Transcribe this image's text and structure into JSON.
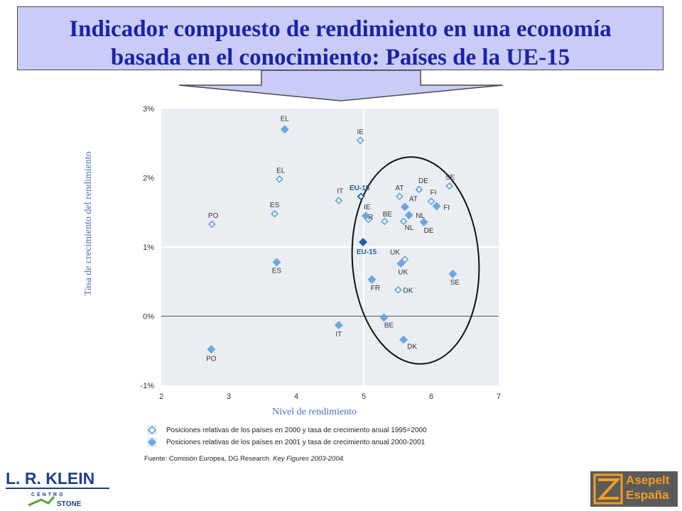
{
  "title": {
    "line1": "Indicador compuesto de rendimiento en una economía",
    "line2": "basada en el conocimiento: Países de la UE-15"
  },
  "chart_data": {
    "type": "scatter",
    "xlabel": "Nivel de rendimiento",
    "ylabel": "Tasa de crecimiento del rendimiento",
    "xlim": [
      2,
      7
    ],
    "ylim": [
      -1,
      3
    ],
    "x_ticks": [
      "2",
      "3",
      "4",
      "5",
      "6",
      "7"
    ],
    "y_ticks": [
      "3%",
      "2%",
      "1%",
      "0%",
      "-1%"
    ],
    "grid": true,
    "series": [
      {
        "name": "Posiciones relativas de los países en 2000 y tasa de crecimiento anual 1995=2000",
        "marker": "hollow-diamond",
        "color": "#6ea6e0",
        "points": [
          {
            "label": "EL",
            "x": 3.75,
            "y": 1.98
          },
          {
            "label": "IE",
            "x": 4.95,
            "y": 2.54
          },
          {
            "label": "PO",
            "x": 2.75,
            "y": 1.33
          },
          {
            "label": "ES",
            "x": 3.68,
            "y": 1.48
          },
          {
            "label": "IT",
            "x": 4.63,
            "y": 1.67
          },
          {
            "label": "EU-15",
            "x": 4.96,
            "y": 1.73
          },
          {
            "label": "AT",
            "x": 5.53,
            "y": 1.73
          },
          {
            "label": "DE",
            "x": 5.82,
            "y": 1.83
          },
          {
            "label": "SE",
            "x": 6.27,
            "y": 1.88
          },
          {
            "label": "FI",
            "x": 6.0,
            "y": 1.66
          },
          {
            "label": "FR",
            "x": 5.07,
            "y": 1.4
          },
          {
            "label": "BE",
            "x": 5.31,
            "y": 1.37
          },
          {
            "label": "NL",
            "x": 5.59,
            "y": 1.37
          },
          {
            "label": "UK",
            "x": 5.61,
            "y": 0.82
          },
          {
            "label": "DK",
            "x": 5.51,
            "y": 0.38
          }
        ]
      },
      {
        "name": "Posiciones relativas de los países en 2001 y tasa de crecimiento anual 2000-2001",
        "marker": "filled-diamond",
        "color": "#6ea6e0",
        "points": [
          {
            "label": "EL",
            "x": 3.83,
            "y": 2.7
          },
          {
            "label": "PO",
            "x": 2.74,
            "y": -0.48
          },
          {
            "label": "ES",
            "x": 3.71,
            "y": 0.78
          },
          {
            "label": "IT",
            "x": 4.63,
            "y": -0.13
          },
          {
            "label": "EU-15",
            "x": 4.99,
            "y": 1.07
          },
          {
            "label": "IE",
            "x": 5.03,
            "y": 1.45
          },
          {
            "label": "AT",
            "x": 5.61,
            "y": 1.58
          },
          {
            "label": "NL",
            "x": 5.67,
            "y": 1.46
          },
          {
            "label": "FI",
            "x": 6.08,
            "y": 1.59
          },
          {
            "label": "DE",
            "x": 5.89,
            "y": 1.36
          },
          {
            "label": "UK",
            "x": 5.55,
            "y": 0.76
          },
          {
            "label": "FR",
            "x": 5.12,
            "y": 0.53
          },
          {
            "label": "SE",
            "x": 6.32,
            "y": 0.61
          },
          {
            "label": "BE",
            "x": 5.3,
            "y": -0.02
          },
          {
            "label": "DK",
            "x": 5.59,
            "y": -0.34
          }
        ]
      }
    ]
  },
  "legend": {
    "item1": "Posiciones relativas de los países en 2000 y tasa de crecimiento anual 1995=2000",
    "item2": "Posiciones relativas de los países en 2001 y tasa de crecimiento anual 2000-2001"
  },
  "source": {
    "prefix": "Fuente: Comisión Europea, DG Research. ",
    "italic": "Key Figures 2003-2004."
  },
  "logos": {
    "left_name": "L. R. KLEIN",
    "left_sub1": "CENTRO",
    "left_sub2": "STONE",
    "right_line1": "Asepelt",
    "right_line2": "España"
  },
  "colors": {
    "title_bg": "#c9ccf7",
    "title_text": "#1a23a6",
    "point": "#6ea6e0",
    "eu_point": "#1f5fa8",
    "axis_label": "#4a6fc0",
    "plot_bg": "#eaeef3"
  }
}
